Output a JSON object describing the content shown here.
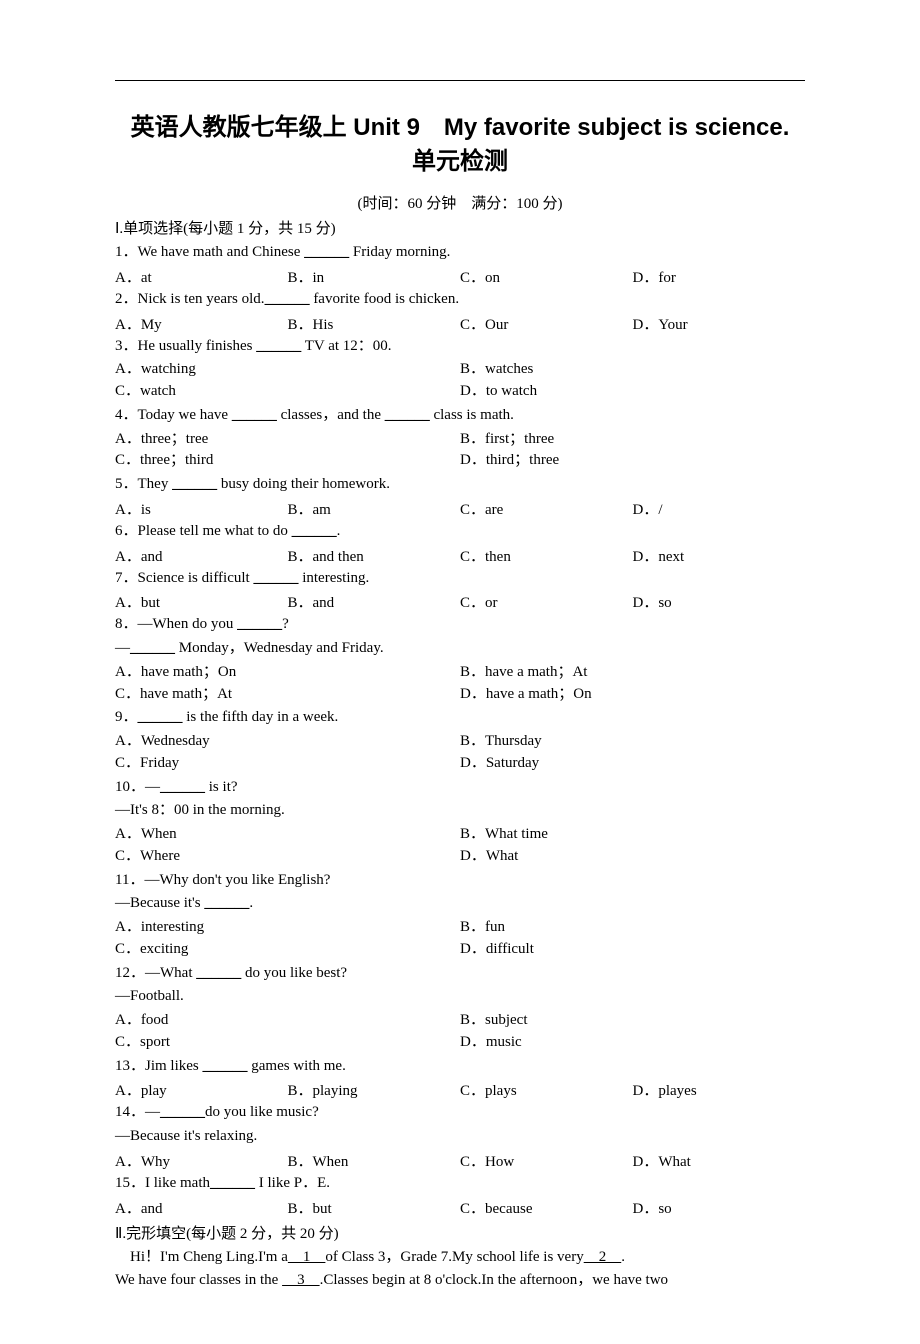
{
  "title_main": "英语人教版七年级上 Unit 9　My favorite subject is science.",
  "title_sub": "单元检测",
  "exam_info": "(时间：60 分钟　满分：100 分)",
  "section1_header": "Ⅰ.单项选择(每小题 1 分，共 15 分)",
  "blank": "______",
  "q1": {
    "stem_pre": "1．We have math and Chinese ",
    "stem_post": " Friday morning.",
    "a": "A．at",
    "b": "B．in",
    "c": "C．on",
    "d": "D．for"
  },
  "q2": {
    "stem_pre": "2．Nick is ten years old.",
    "stem_post": " favorite food is chicken.",
    "a": "A．My",
    "b": "B．His",
    "c": "C．Our",
    "d": "D．Your"
  },
  "q3": {
    "stem_pre": "3．He usually finishes ",
    "stem_post": " TV at 12：00.",
    "a": "A．watching",
    "b": "B．watches",
    "c": "C．watch",
    "d": "D．to watch"
  },
  "q4": {
    "stem_pre": "4．Today we have ",
    "stem_mid": " classes，and the ",
    "stem_post": " class is math.",
    "a": "A．three；tree",
    "b": "B．first；three",
    "c": "C．three；third",
    "d": "D．third；three"
  },
  "q5": {
    "stem_pre": "5．They ",
    "stem_post": " busy doing their homework.",
    "a": "A．is",
    "b": "B．am",
    "c": "C．are",
    "d": "D．/"
  },
  "q6": {
    "stem_pre": "6．Please tell me what to do ",
    "stem_post": ".",
    "a": "A．and",
    "b": "B．and then",
    "c": "C．then",
    "d": "D．next"
  },
  "q7": {
    "stem_pre": "7．Science is difficult ",
    "stem_post": " interesting.",
    "a": "A．but",
    "b": "B．and",
    "c": "C．or",
    "d": "D．so"
  },
  "q8": {
    "line1_pre": "8．—When do you ",
    "line1_post": "?",
    "line2_pre": "—",
    "line2_post": " Monday，Wednesday and Friday.",
    "a": "A．have math；On",
    "b": "B．have a math；At",
    "c": "C．have math；At",
    "d": "D．have a math；On"
  },
  "q9": {
    "stem_pre": "9．",
    "stem_post": " is the fifth day in a week.",
    "a": "A．Wednesday",
    "b": "B．Thursday",
    "c": "C．Friday",
    "d": "D．Saturday"
  },
  "q10": {
    "line1_pre": "10．—",
    "line1_post": " is it?",
    "line2": "—It's 8：00 in the morning.",
    "a": "A．When",
    "b": "B．What time",
    "c": "C．Where",
    "d": "D．What"
  },
  "q11": {
    "line1": "11．—Why don't you like English?",
    "line2_pre": "—Because it's ",
    "line2_post": ".",
    "a": "A．interesting",
    "b": "B．fun",
    "c": "C．exciting",
    "d": "D．difficult"
  },
  "q12": {
    "line1_pre": "12．—What ",
    "line1_post": " do you like best?",
    "line2": "—Football.",
    "a": "A．food",
    "b": "B．subject",
    "c": "C．sport",
    "d": "D．music"
  },
  "q13": {
    "stem_pre": "13．Jim likes ",
    "stem_post": " games with me.",
    "a": "A．play",
    "b": "B．playing",
    "c": "C．plays",
    "d": "D．playes"
  },
  "q14": {
    "line1_pre": "14．—",
    "line1_post": "do you like music?",
    "line2": "—Because it's relaxing.",
    "a": "A．Why",
    "b": "B．When",
    "c": "C．How",
    "d": "D．What"
  },
  "q15": {
    "stem_pre": "15．I like math",
    "stem_post": " I like P．E.",
    "a": "A．and",
    "b": "B．but",
    "c": "C．because",
    "d": "D．so"
  },
  "section2_header": "Ⅱ.完形填空(每小题 2 分，共 20 分)",
  "cloze": {
    "p1_1": "Hi！I'm Cheng Ling.I'm a",
    "b1": "　1　",
    "p1_2": "of Class 3，Grade 7.My school life is very",
    "b2": "　2　",
    "p1_3": ".",
    "p2_1": "We have four classes in the ",
    "b3": "　3　",
    "p2_2": ".Classes begin at 8 o'clock.In the afternoon，we have two"
  }
}
